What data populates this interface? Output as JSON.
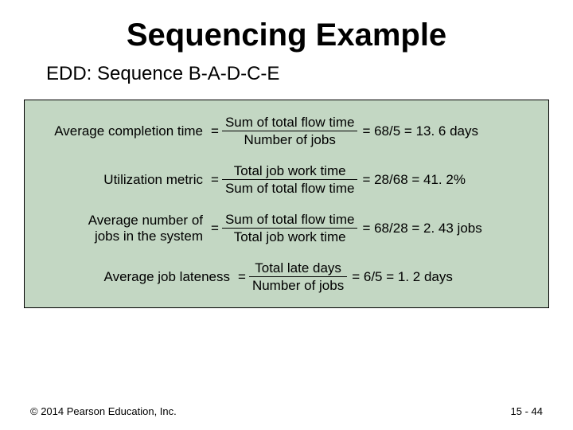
{
  "title": "Sequencing Example",
  "subtitle": "EDD: Sequence B-A-D-C-E",
  "panel_bg": "#c3d7c3",
  "metrics": {
    "m1": {
      "lhs": "Average completion time",
      "num": "Sum of total flow time",
      "den": "Number of jobs",
      "rhs": "= 68/5 = 13. 6 days"
    },
    "m2": {
      "lhs": "Utilization metric",
      "num": "Total job work time",
      "den": "Sum of total flow time",
      "rhs": "= 28/68 = 41. 2%"
    },
    "m3": {
      "lhs_line1": "Average number of",
      "lhs_line2": "jobs in the system",
      "num": "Sum of total flow time",
      "den": "Total job work time",
      "rhs": "= 68/28 = 2. 43 jobs"
    },
    "m4": {
      "lhs": "Average job lateness",
      "num": "Total late days",
      "den": "Number of jobs",
      "rhs": "= 6/5 = 1. 2 days"
    }
  },
  "footer": {
    "copyright": "© 2014 Pearson Education, Inc.",
    "page": "15 - 44"
  },
  "lhs_widths": {
    "m1": "220px",
    "m2": "220px",
    "m3": "220px",
    "m4": "254px"
  }
}
